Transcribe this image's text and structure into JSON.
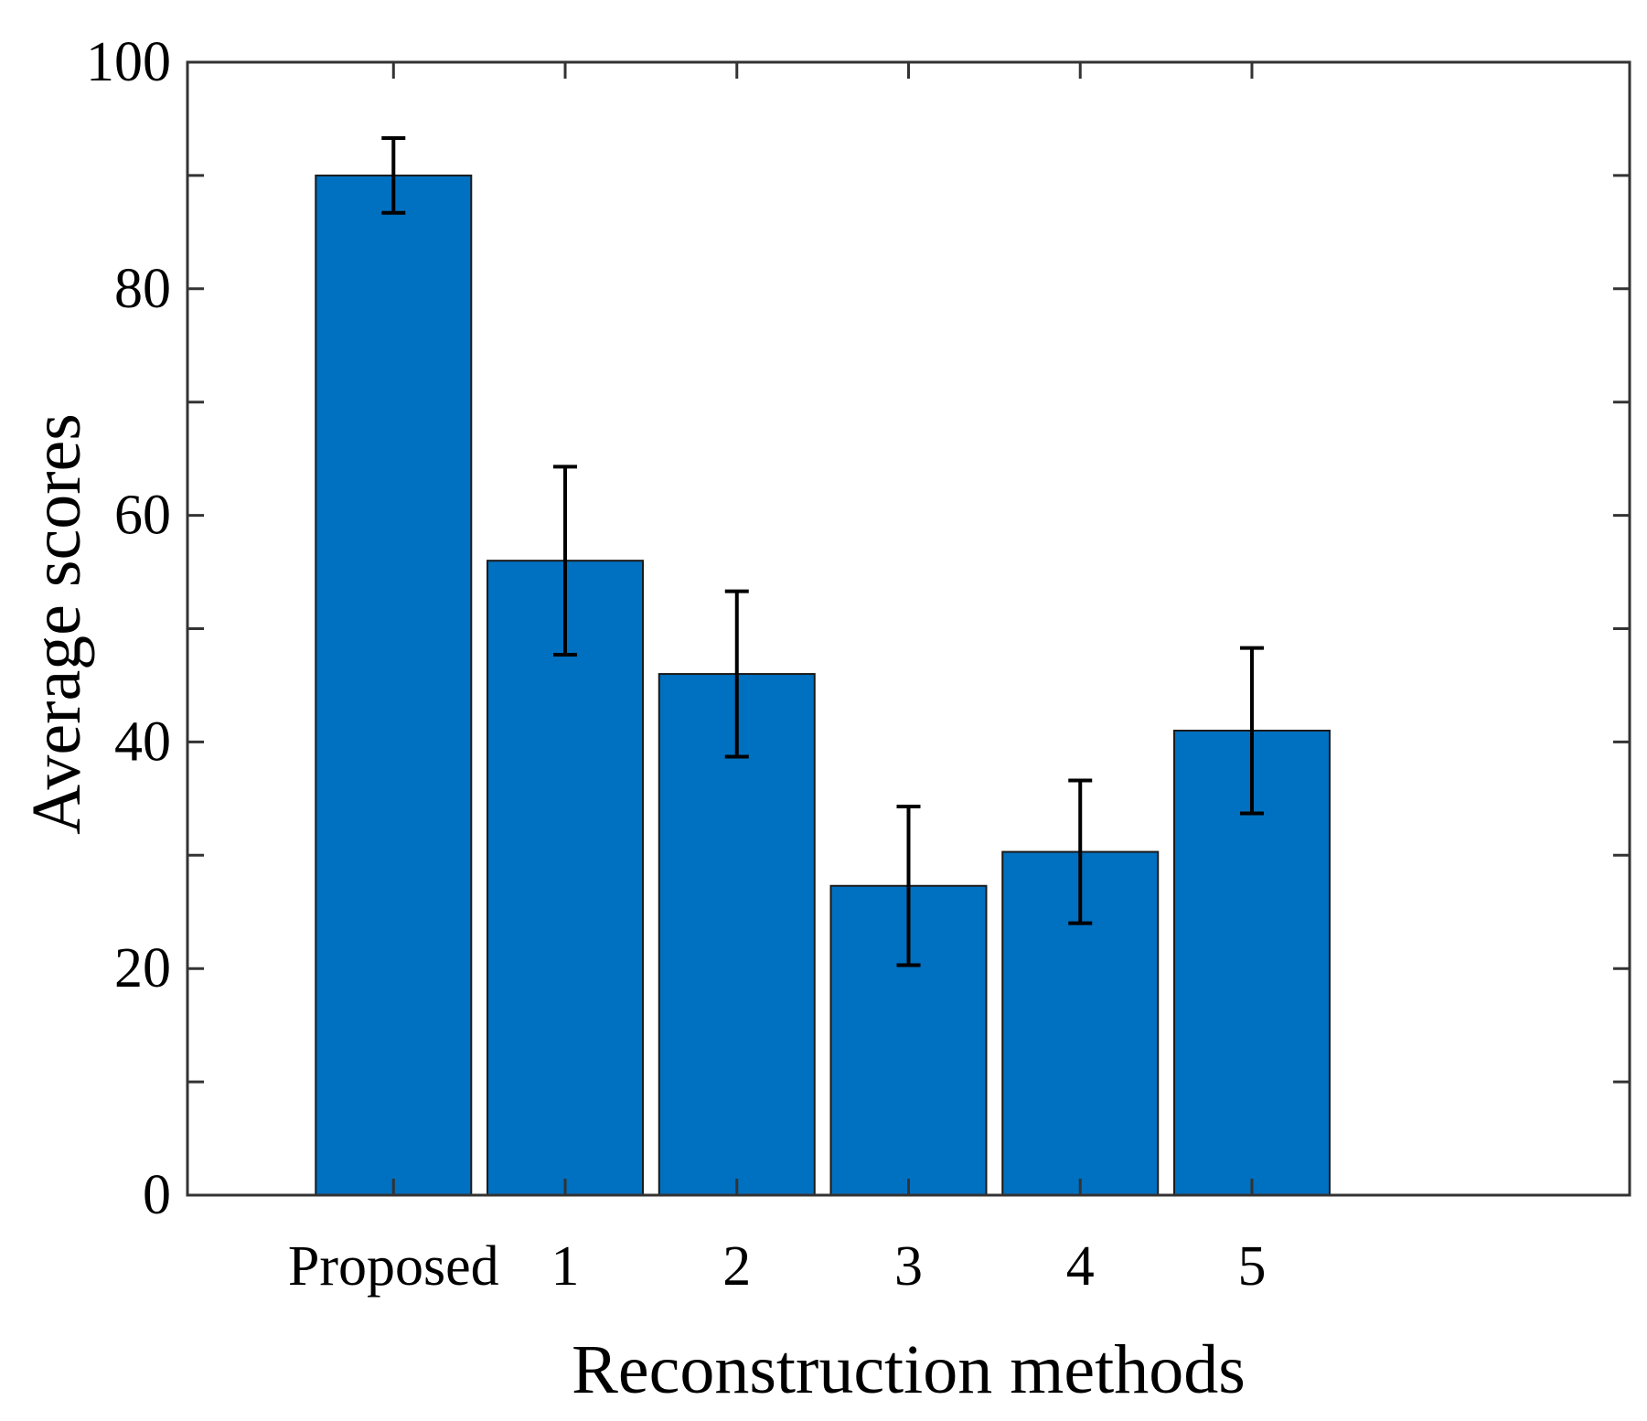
{
  "chart_data": {
    "type": "bar",
    "title": "",
    "xlabel": "Reconstruction methods",
    "ylabel": "Average scores",
    "categories": [
      "Proposed",
      "1",
      "2",
      "3",
      "4",
      "5"
    ],
    "values": [
      90,
      56,
      46,
      27.3,
      30.3,
      41
    ],
    "errors": [
      3.3,
      8.3,
      7.3,
      7,
      6.3,
      7.3
    ],
    "ylim": [
      0,
      100
    ],
    "xlim": [
      -1.2,
      7.2
    ],
    "y_ticks": [
      0,
      20,
      40,
      60,
      80,
      100
    ],
    "y_minor_ticks": [
      10,
      30,
      50,
      70,
      90
    ],
    "y_tick_labels": [
      "0",
      "20",
      "40",
      "60",
      "80",
      "100"
    ],
    "grid": false,
    "legend": "none"
  },
  "colors": {
    "bar_fill": "#0070c0",
    "bar_edge": "#1a1a1a",
    "axis": "#333333",
    "error_bar": "#000000",
    "background": "#ffffff"
  }
}
